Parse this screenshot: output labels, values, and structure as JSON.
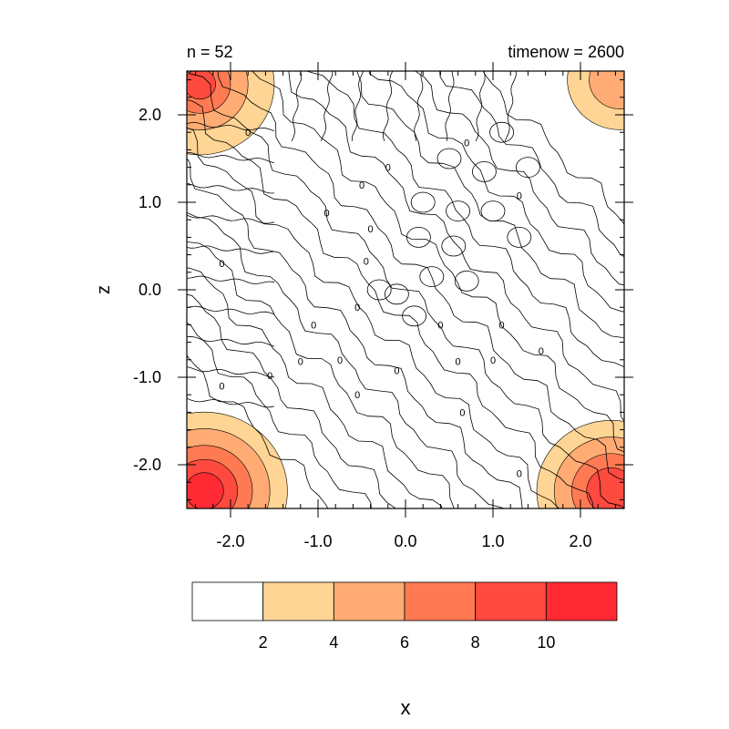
{
  "chart_data": {
    "type": "heatmap",
    "title_left": "n = 52",
    "title_right": "timenow = 2600",
    "xlabel": "x",
    "ylabel": "z",
    "xlim": [
      -2.5,
      2.5
    ],
    "ylim": [
      -2.5,
      2.5
    ],
    "xticks": [
      -2.0,
      -1.0,
      0.0,
      1.0,
      2.0
    ],
    "xtick_labels": [
      "-2.0",
      "-1.0",
      "0.0",
      "1.0",
      "2.0"
    ],
    "yticks": [
      2.0,
      1.0,
      0.0,
      -1.0,
      -2.0
    ],
    "ytick_labels": [
      "2.0",
      "1.0",
      "0.0",
      "-1.0",
      "-2.0"
    ],
    "grid": false,
    "colorbar": {
      "levels": [
        2,
        4,
        6,
        8,
        10
      ],
      "level_labels": [
        "2",
        "4",
        "6",
        "8",
        "10"
      ],
      "colors": [
        "#ffffff",
        "#ffd595",
        "#ffab73",
        "#ff7a52",
        "#ff4a40",
        "#ff2a33"
      ],
      "placement": "bottom"
    },
    "contour_labels": [
      {
        "text": "0",
        "x": -1.8,
        "y": 1.8
      },
      {
        "text": "0",
        "x": 0.7,
        "y": 1.68
      },
      {
        "text": "0",
        "x": -0.2,
        "y": 1.4
      },
      {
        "text": "0",
        "x": -0.5,
        "y": 1.2
      },
      {
        "text": "0",
        "x": 1.3,
        "y": 1.08
      },
      {
        "text": "0",
        "x": -0.9,
        "y": 0.88
      },
      {
        "text": "0",
        "x": -0.4,
        "y": 0.7
      },
      {
        "text": "0",
        "x": -2.1,
        "y": 0.3
      },
      {
        "text": "0",
        "x": -0.45,
        "y": 0.33
      },
      {
        "text": "0",
        "x": -0.55,
        "y": -0.2
      },
      {
        "text": "0",
        "x": -1.05,
        "y": -0.4
      },
      {
        "text": "0",
        "x": 0.4,
        "y": -0.4
      },
      {
        "text": "0",
        "x": 1.1,
        "y": -0.4
      },
      {
        "text": "0",
        "x": -1.2,
        "y": -0.82
      },
      {
        "text": "0",
        "x": -0.75,
        "y": -0.8
      },
      {
        "text": "0",
        "x": 0.6,
        "y": -0.82
      },
      {
        "text": "0",
        "x": 1.0,
        "y": -0.8
      },
      {
        "text": "0",
        "x": 1.55,
        "y": -0.7
      },
      {
        "text": "0",
        "x": -1.55,
        "y": -0.98
      },
      {
        "text": "0",
        "x": -0.1,
        "y": -0.92
      },
      {
        "text": "0",
        "x": -2.1,
        "y": -1.1
      },
      {
        "text": "0",
        "x": -0.55,
        "y": -1.2
      },
      {
        "text": "0",
        "x": 0.65,
        "y": -1.4
      },
      {
        "text": "0",
        "x": 1.3,
        "y": -2.1
      }
    ]
  }
}
